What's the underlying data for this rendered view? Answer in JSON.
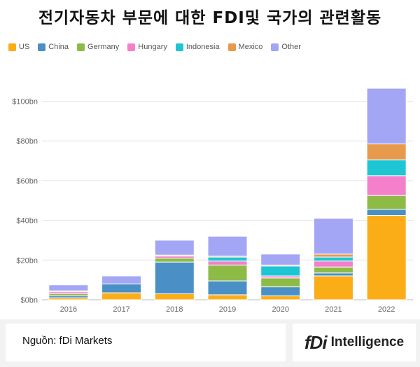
{
  "title": "전기자동차 부문에 대한 FDI및 국가의 관련활동",
  "source": "Nguồn: fDi Markets",
  "logo": {
    "fdi": "fDi",
    "intelligence": "Intelligence"
  },
  "colors": {
    "US": "#fbad18",
    "China": "#4a90c6",
    "Germany": "#8dbb46",
    "Hungary": "#f47fcb",
    "Indonesia": "#1ec6d3",
    "Mexico": "#e89a4c",
    "Other": "#a3a5f5"
  },
  "chart_data": {
    "type": "bar",
    "stacked": true,
    "categories": [
      "2016",
      "2017",
      "2018",
      "2019",
      "2020",
      "2021",
      "2022"
    ],
    "y_tick_labels": [
      "$0bn",
      "$20bn",
      "$40bn",
      "$60bn",
      "$80bn",
      "$100bn"
    ],
    "y_ticks": [
      0,
      20,
      40,
      60,
      80,
      100
    ],
    "ylim": [
      0,
      110
    ],
    "grid": true,
    "legend_position": "top-left",
    "series": [
      {
        "name": "US",
        "values": [
          1,
          3.5,
          3,
          2.5,
          2,
          12,
          42.5
        ]
      },
      {
        "name": "China",
        "values": [
          1,
          4.5,
          16,
          7,
          4.5,
          1.5,
          3
        ]
      },
      {
        "name": "Germany",
        "values": [
          1,
          0,
          2,
          8,
          4.5,
          3,
          7
        ]
      },
      {
        "name": "Hungary",
        "values": [
          1,
          0,
          1,
          2,
          1,
          3,
          10
        ]
      },
      {
        "name": "Indonesia",
        "values": [
          0,
          0,
          0,
          2,
          5,
          2,
          8
        ]
      },
      {
        "name": "Mexico",
        "values": [
          0.5,
          0,
          0.5,
          0.5,
          0.5,
          1.5,
          8
        ]
      },
      {
        "name": "Other",
        "values": [
          3,
          4,
          7.5,
          10,
          5.5,
          18,
          28
        ]
      }
    ]
  }
}
